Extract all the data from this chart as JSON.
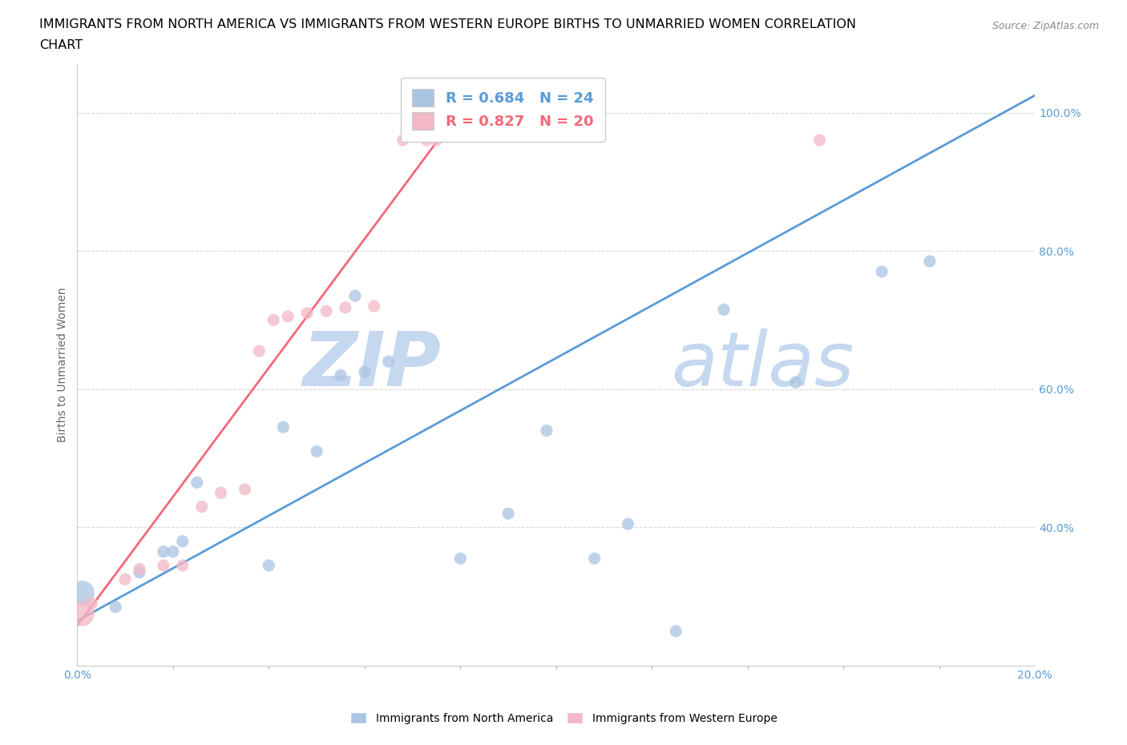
{
  "title_line1": "IMMIGRANTS FROM NORTH AMERICA VS IMMIGRANTS FROM WESTERN EUROPE BIRTHS TO UNMARRIED WOMEN CORRELATION",
  "title_line2": "CHART",
  "source": "Source: ZipAtlas.com",
  "ylabel": "Births to Unmarried Women",
  "xlim": [
    0.0,
    0.2
  ],
  "ylim": [
    0.2,
    1.07
  ],
  "xticks": [
    0.0,
    0.02,
    0.04,
    0.06,
    0.08,
    0.1,
    0.12,
    0.14,
    0.16,
    0.18,
    0.2
  ],
  "xticklabels": [
    "0.0%",
    "",
    "",
    "",
    "",
    "",
    "",
    "",
    "",
    "",
    "20.0%"
  ],
  "yticks": [
    0.4,
    0.6,
    0.8,
    1.0
  ],
  "yticklabels": [
    "40.0%",
    "60.0%",
    "80.0%",
    "100.0%"
  ],
  "blue_color": "#aac4e2",
  "pink_color": "#f2b8c6",
  "blue_line_color": "#5b9bd5",
  "pink_line_color": "#f4687a",
  "legend_blue_label": "R = 0.684   N = 24",
  "legend_pink_label": "R = 0.827   N = 20",
  "legend_blue_text_color": "#5b9bd5",
  "legend_pink_text_color": "#f4687a",
  "watermark_zip": "ZIP",
  "watermark_atlas": "atlas",
  "watermark_color_zip": "#c5d8ef",
  "watermark_color_atlas": "#c5d8ef",
  "blue_scatter_x": [
    0.001,
    0.008,
    0.013,
    0.018,
    0.02,
    0.022,
    0.025,
    0.04,
    0.043,
    0.05,
    0.055,
    0.058,
    0.06,
    0.065,
    0.08,
    0.09,
    0.098,
    0.108,
    0.115,
    0.125,
    0.135,
    0.15,
    0.168,
    0.178
  ],
  "blue_scatter_y": [
    0.305,
    0.285,
    0.335,
    0.365,
    0.365,
    0.38,
    0.465,
    0.345,
    0.545,
    0.51,
    0.62,
    0.735,
    0.625,
    0.64,
    0.355,
    0.42,
    0.54,
    0.355,
    0.405,
    0.25,
    0.715,
    0.61,
    0.77,
    0.785
  ],
  "blue_sizes": [
    500,
    120,
    120,
    120,
    120,
    120,
    120,
    120,
    120,
    120,
    120,
    120,
    120,
    120,
    120,
    120,
    120,
    120,
    120,
    120,
    120,
    120,
    120,
    120
  ],
  "pink_scatter_x": [
    0.001,
    0.003,
    0.01,
    0.013,
    0.018,
    0.022,
    0.026,
    0.03,
    0.035,
    0.038,
    0.041,
    0.044,
    0.048,
    0.052,
    0.056,
    0.062,
    0.068,
    0.073,
    0.075,
    0.155
  ],
  "pink_scatter_y": [
    0.275,
    0.29,
    0.325,
    0.34,
    0.345,
    0.345,
    0.43,
    0.45,
    0.455,
    0.655,
    0.7,
    0.705,
    0.71,
    0.713,
    0.718,
    0.72,
    0.96,
    0.96,
    0.96,
    0.96
  ],
  "pink_sizes": [
    500,
    120,
    120,
    120,
    120,
    120,
    120,
    120,
    120,
    120,
    120,
    120,
    120,
    120,
    120,
    120,
    120,
    120,
    120,
    120
  ],
  "blue_trendline_x": [
    0.0,
    0.2
  ],
  "blue_trendline_y": [
    0.265,
    1.025
  ],
  "pink_trendline_x": [
    0.0,
    0.078
  ],
  "pink_trendline_y": [
    0.258,
    0.985
  ],
  "grid_color": "#d8d8d8",
  "title_fontsize": 11.5,
  "axis_label_fontsize": 10,
  "tick_fontsize": 10,
  "legend_fontsize": 13,
  "source_fontsize": 9,
  "bottom_legend_blue": "Immigrants from North America",
  "bottom_legend_pink": "Immigrants from Western Europe",
  "ylabel_color": "#666666",
  "tick_color": "#5b9bd5"
}
